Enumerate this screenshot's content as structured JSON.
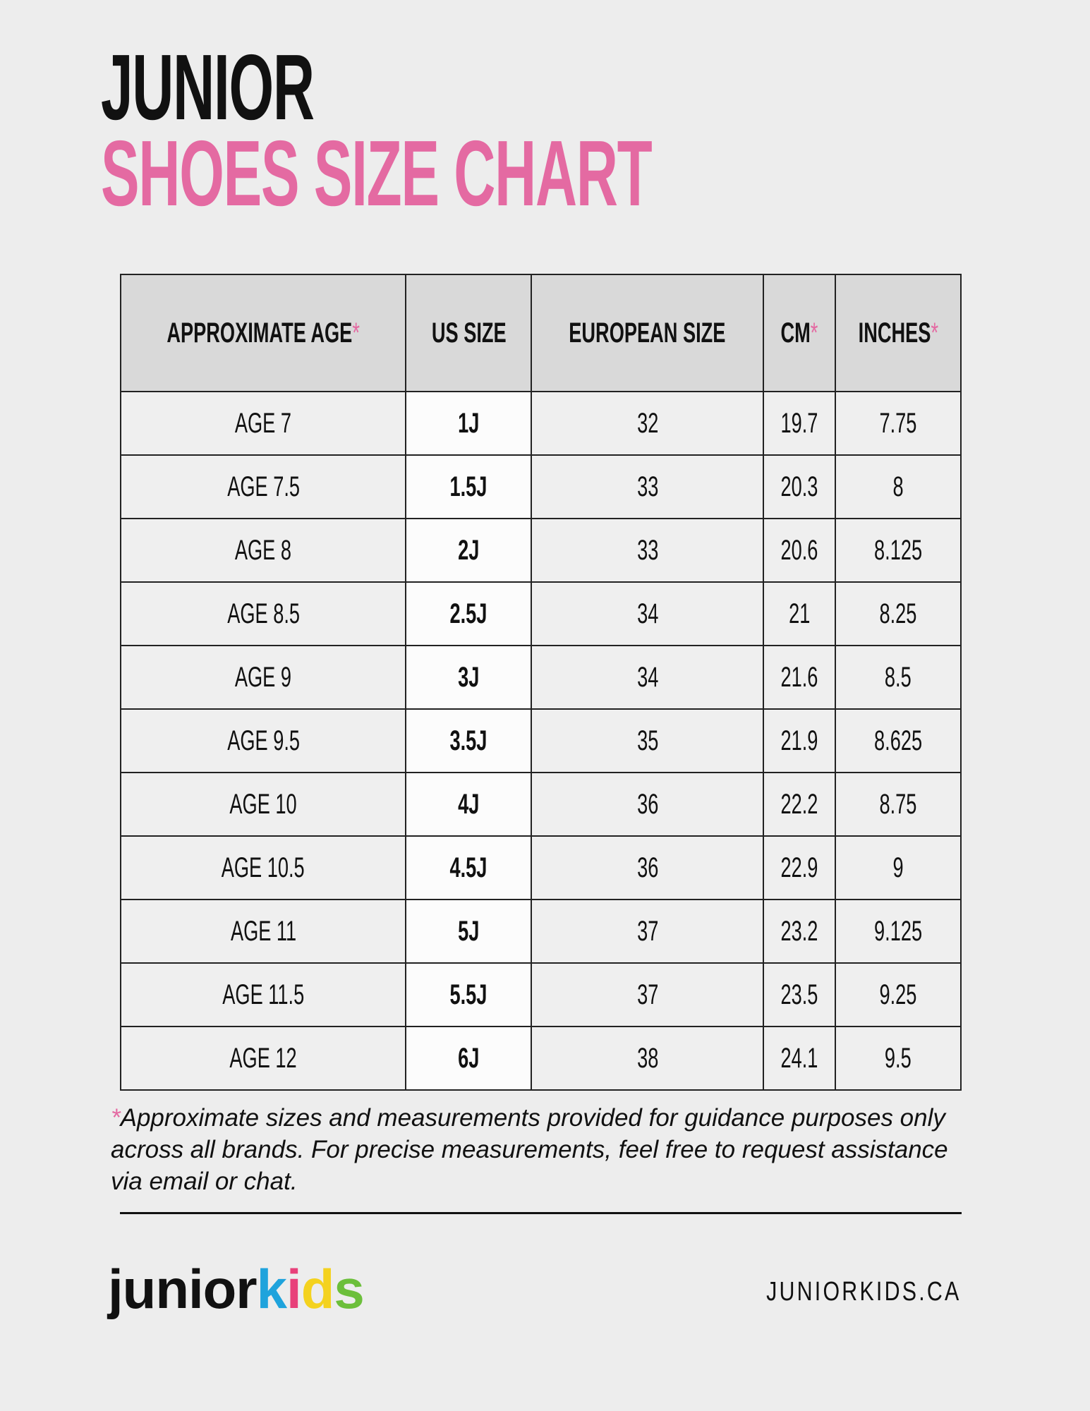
{
  "header": {
    "line1": "JUNIOR",
    "line2": "SHOES SIZE CHART"
  },
  "table": {
    "columns": [
      {
        "text": "APPROXIMATE AGE",
        "mark": "*"
      },
      {
        "text": "US SIZE"
      },
      {
        "text": "EUROPEAN SIZE"
      },
      {
        "text": "CM",
        "mark": "*"
      },
      {
        "text": "INCHES",
        "mark": "*"
      }
    ],
    "rows": [
      [
        "AGE 7",
        "1J",
        "32",
        "19.7",
        "7.75"
      ],
      [
        "AGE 7.5",
        "1.5J",
        "33",
        "20.3",
        "8"
      ],
      [
        "AGE 8",
        "2J",
        "33",
        "20.6",
        "8.125"
      ],
      [
        "AGE 8.5",
        "2.5J",
        "34",
        "21",
        "8.25"
      ],
      [
        "AGE 9",
        "3J",
        "34",
        "21.6",
        "8.5"
      ],
      [
        "AGE 9.5",
        "3.5J",
        "35",
        "21.9",
        "8.625"
      ],
      [
        "AGE 10",
        "4J",
        "36",
        "22.2",
        "8.75"
      ],
      [
        "AGE 10.5",
        "4.5J",
        "36",
        "22.9",
        "9"
      ],
      [
        "AGE 11",
        "5J",
        "37",
        "23.2",
        "9.125"
      ],
      [
        "AGE 11.5",
        "5.5J",
        "37",
        "23.5",
        "9.25"
      ],
      [
        "AGE 12",
        "6J",
        "38",
        "24.1",
        "9.5"
      ]
    ]
  },
  "footnote": {
    "mark": "*",
    "text": "Approximate sizes and measurements provided for guidance purposes only across all brands. For precise measurements, feel free to request assistance via email or chat."
  },
  "footer": {
    "logo_part1": "junior",
    "logo_part2": "kids",
    "website": "JUNIORKIDS.CA"
  }
}
